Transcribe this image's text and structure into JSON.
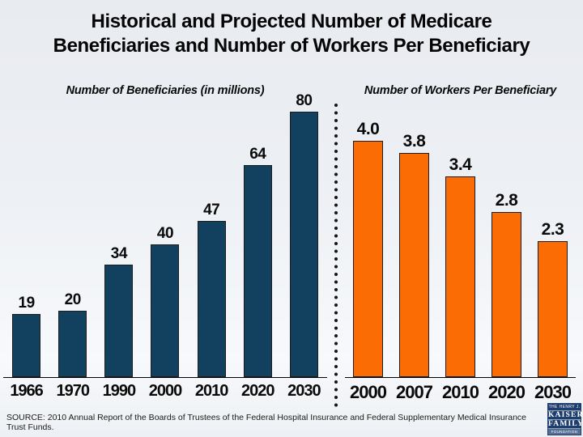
{
  "slide": {
    "title_line1": "Historical and Projected Number of Medicare",
    "title_line2": "Beneficiaries and Number of Workers Per Beneficiary",
    "source_text": "SOURCE: 2010 Annual Report of the Boards of Trustees of the Federal Hospital Insurance and Federal Supplementary Medical Insurance Trust Funds.",
    "logo": {
      "top": "THE HENRY J.",
      "name1": "KAISER",
      "name2": "FAMILY",
      "bottom": "FOUNDATION"
    }
  },
  "colors": {
    "background": "#edf0f4",
    "beneficiaries_bar": "#12405f",
    "workers_bar": "#fb6c04",
    "bar_border": "#1c1c1c",
    "divider_dots": "#151515",
    "logo_navy": "#1d3e6e"
  },
  "chart_data": [
    {
      "type": "bar",
      "title": "Number of Beneficiaries (in millions)",
      "categories": [
        "1966",
        "1970",
        "1990",
        "2000",
        "2010",
        "2020",
        "2030"
      ],
      "values": [
        19,
        20,
        34,
        40,
        47,
        64,
        80
      ],
      "labels": [
        "19",
        "20",
        "34",
        "40",
        "47",
        "64",
        "80"
      ],
      "bar_color": "#12405f",
      "ylim": [
        0,
        82
      ],
      "grid": false,
      "legend": "none",
      "data_labels": "above bars"
    },
    {
      "type": "bar",
      "title": "Number of Workers Per Beneficiary",
      "categories": [
        "2000",
        "2007",
        "2010",
        "2020",
        "2030"
      ],
      "values": [
        4.0,
        3.8,
        3.4,
        2.8,
        2.3
      ],
      "labels": [
        "4.0",
        "3.8",
        "3.4",
        "2.8",
        "2.3"
      ],
      "bar_color": "#fb6c04",
      "ylim": [
        0,
        4.6
      ],
      "grid": false,
      "legend": "none",
      "data_labels": "above bars"
    }
  ]
}
